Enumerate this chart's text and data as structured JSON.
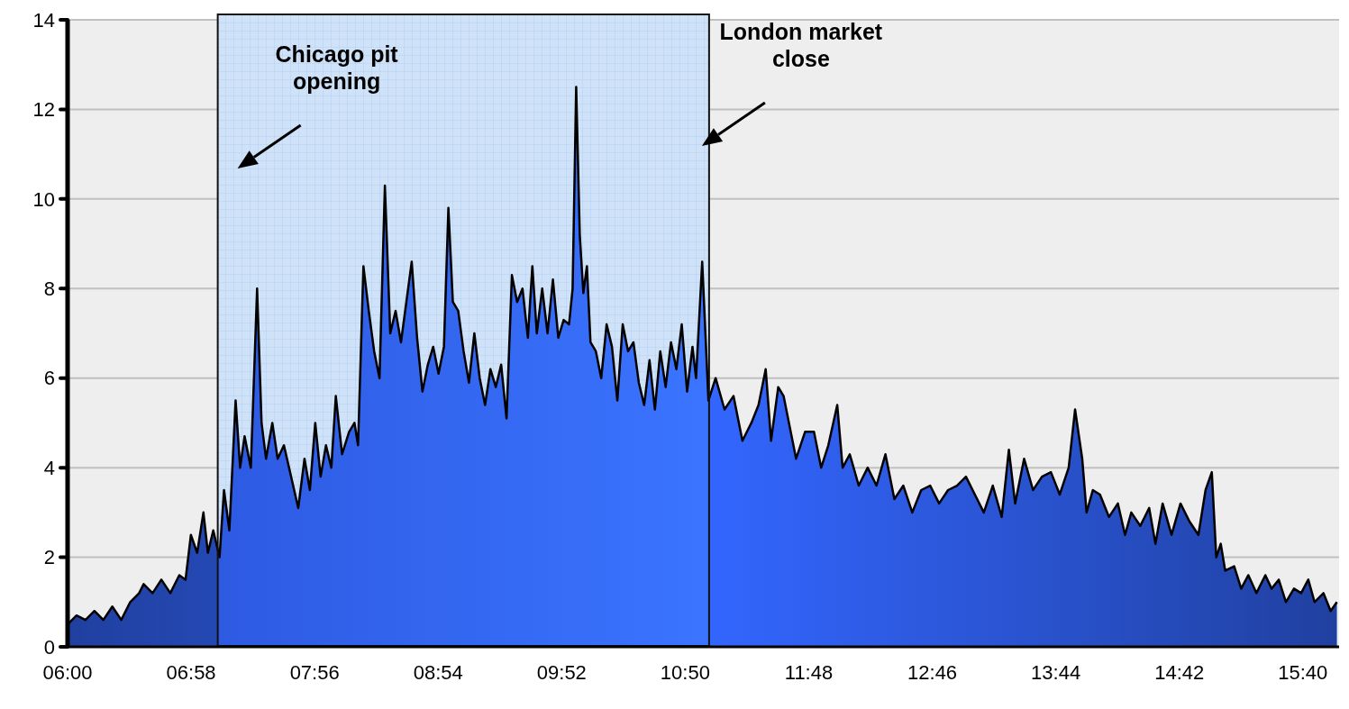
{
  "chart_data": {
    "type": "area",
    "x": [
      6.0,
      6.07,
      6.14,
      6.21,
      6.28,
      6.35,
      6.42,
      6.49,
      6.56,
      6.595,
      6.665,
      6.734,
      6.804,
      6.874,
      6.923,
      6.965,
      7.014,
      7.063,
      7.098,
      7.14,
      7.189,
      7.224,
      7.266,
      7.315,
      7.35,
      7.385,
      7.434,
      7.483,
      7.518,
      7.553,
      7.602,
      7.644,
      7.693,
      7.749,
      7.805,
      7.854,
      7.896,
      7.938,
      7.98,
      8.022,
      8.064,
      8.099,
      8.148,
      8.203,
      8.245,
      8.273,
      8.315,
      8.357,
      8.399,
      8.441,
      8.483,
      8.525,
      8.567,
      8.609,
      8.651,
      8.693,
      8.735,
      8.777,
      8.819,
      8.861,
      8.903,
      8.945,
      8.98,
      9.015,
      9.057,
      9.099,
      9.141,
      9.183,
      9.225,
      9.267,
      9.309,
      9.351,
      9.393,
      9.435,
      9.477,
      9.518,
      9.56,
      9.602,
      9.637,
      9.672,
      9.714,
      9.756,
      9.798,
      9.84,
      9.882,
      9.924,
      9.952,
      9.98,
      10.008,
      10.036,
      10.064,
      10.092,
      10.134,
      10.176,
      10.218,
      10.26,
      10.302,
      10.344,
      10.386,
      10.428,
      10.47,
      10.512,
      10.554,
      10.596,
      10.638,
      10.68,
      10.722,
      10.764,
      10.806,
      10.848,
      10.89,
      10.918,
      10.966,
      11.015,
      11.071,
      11.141,
      11.211,
      11.281,
      11.351,
      11.407,
      11.463,
      11.505,
      11.561,
      11.603,
      11.645,
      11.701,
      11.771,
      11.841,
      11.897,
      11.953,
      12.023,
      12.065,
      12.121,
      12.191,
      12.261,
      12.33,
      12.4,
      12.47,
      12.54,
      12.61,
      12.68,
      12.75,
      12.82,
      12.89,
      12.96,
      13.03,
      13.1,
      13.17,
      13.24,
      13.31,
      13.366,
      13.415,
      13.485,
      13.555,
      13.625,
      13.695,
      13.764,
      13.834,
      13.884,
      13.94,
      13.974,
      14.023,
      14.079,
      14.149,
      14.219,
      14.275,
      14.324,
      14.394,
      14.464,
      14.513,
      14.569,
      14.639,
      14.709,
      14.779,
      14.849,
      14.905,
      14.954,
      14.989,
      15.024,
      15.059,
      15.129,
      15.184,
      15.24,
      15.303,
      15.373,
      15.422,
      15.478,
      15.534,
      15.597,
      15.653,
      15.709,
      15.758,
      15.828,
      15.884,
      15.933
    ],
    "series": [
      {
        "color": "#3366ff",
        "values": [
          0.5,
          0.7,
          0.6,
          0.8,
          0.6,
          0.9,
          0.6,
          1.0,
          1.2,
          1.4,
          1.2,
          1.5,
          1.2,
          1.6,
          1.5,
          2.5,
          2.1,
          3.0,
          2.1,
          2.6,
          2.0,
          3.5,
          2.6,
          5.5,
          4.0,
          4.7,
          4.0,
          8.0,
          5.0,
          4.2,
          5.0,
          4.2,
          4.5,
          3.8,
          3.1,
          4.2,
          3.5,
          5.0,
          3.8,
          4.5,
          4.0,
          5.6,
          4.3,
          4.8,
          5.0,
          4.5,
          8.5,
          7.5,
          6.6,
          6.0,
          10.3,
          7.0,
          7.5,
          6.8,
          7.7,
          8.6,
          6.9,
          5.7,
          6.3,
          6.7,
          6.1,
          6.7,
          9.8,
          7.7,
          7.5,
          6.6,
          5.9,
          7.0,
          6.0,
          5.4,
          6.2,
          5.8,
          6.3,
          5.1,
          8.3,
          7.7,
          8.0,
          6.9,
          8.5,
          7.0,
          8.0,
          7.0,
          8.2,
          6.9,
          7.3,
          7.2,
          8.0,
          12.5,
          9.2,
          7.9,
          8.5,
          6.8,
          6.6,
          6.0,
          7.2,
          6.7,
          5.5,
          7.2,
          6.6,
          6.8,
          5.9,
          5.4,
          6.4,
          5.3,
          6.6,
          5.8,
          6.8,
          6.2,
          7.2,
          5.7,
          6.7,
          6.0,
          8.6,
          5.5,
          6.0,
          5.3,
          5.6,
          4.6,
          5.0,
          5.4,
          6.2,
          4.6,
          5.8,
          5.6,
          5.0,
          4.2,
          4.8,
          4.8,
          4.0,
          4.5,
          5.4,
          4.0,
          4.3,
          3.6,
          4.0,
          3.6,
          4.3,
          3.3,
          3.6,
          3.0,
          3.5,
          3.6,
          3.2,
          3.5,
          3.6,
          3.8,
          3.4,
          3.0,
          3.6,
          2.9,
          4.4,
          3.2,
          4.2,
          3.5,
          3.8,
          3.9,
          3.4,
          4.0,
          5.3,
          4.2,
          3.0,
          3.5,
          3.4,
          2.9,
          3.2,
          2.5,
          3.0,
          2.7,
          3.1,
          2.3,
          3.2,
          2.5,
          3.2,
          2.8,
          2.5,
          3.5,
          3.9,
          2.0,
          2.3,
          1.7,
          1.8,
          1.3,
          1.6,
          1.2,
          1.6,
          1.3,
          1.5,
          1.0,
          1.3,
          1.2,
          1.5,
          1.0,
          1.2,
          0.8,
          1.0
        ]
      }
    ],
    "xlim": [
      6,
      15.95
    ],
    "xticks": [
      {
        "value": 6,
        "label": "06:00"
      },
      {
        "value": 6.9667,
        "label": "06:58"
      },
      {
        "value": 7.9333,
        "label": "07:56"
      },
      {
        "value": 8.9,
        "label": "08:54"
      },
      {
        "value": 9.8667,
        "label": "09:52"
      },
      {
        "value": 10.8333,
        "label": "10:50"
      },
      {
        "value": 11.8,
        "label": "11:48"
      },
      {
        "value": 12.7667,
        "label": "12:46"
      },
      {
        "value": 13.7333,
        "label": "13:44"
      },
      {
        "value": 14.7,
        "label": "14:42"
      },
      {
        "value": 15.6667,
        "label": "15:40"
      }
    ],
    "ylim": [
      0,
      14
    ],
    "yticks": [
      0,
      2,
      4,
      6,
      8,
      10,
      12,
      14
    ],
    "grid": "y",
    "bands": [
      {
        "axis": "x",
        "from": 7.175,
        "to": 11.02,
        "color": "#cfe2f7"
      }
    ],
    "annotations": [
      "Chicago pit opening",
      "London market close"
    ]
  }
}
